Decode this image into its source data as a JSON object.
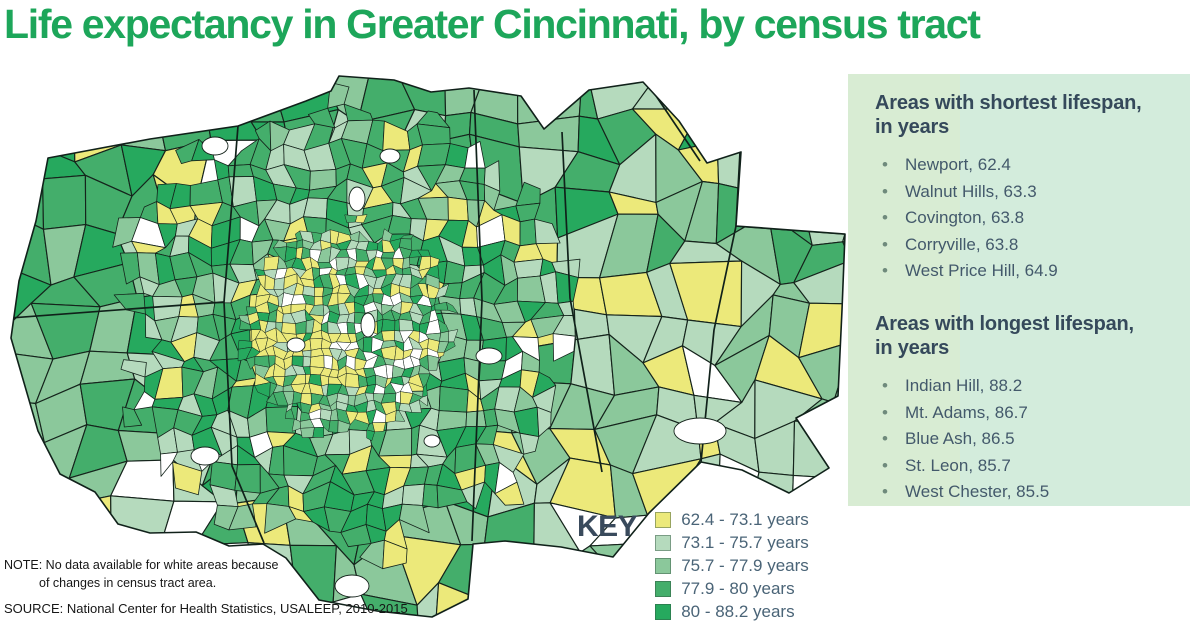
{
  "title": "Life expectancy in Greater Cincinnati, by census tract",
  "map": {
    "note_line1": "NOTE: No data available for white areas because",
    "note_line2": "of changes in census tract area.",
    "source": "SOURCE: National Center for Health Statistics, USALEEP, 2010-2015",
    "no_data_color": "#ffffff"
  },
  "key": {
    "label": "KEY",
    "items": [
      {
        "range": "62.4 - 73.1 years",
        "color": "#ece97a"
      },
      {
        "range": "73.1 - 75.7 years",
        "color": "#b5dabd"
      },
      {
        "range": "75.7 - 77.9 years",
        "color": "#8bc89b"
      },
      {
        "range": "77.9 - 80 years",
        "color": "#44ae6b"
      },
      {
        "range": "80 - 88.2 years",
        "color": "#26a95e"
      }
    ]
  },
  "panel": {
    "shortest": {
      "heading_line1": "Areas with shortest lifespan,",
      "heading_line2": "in years",
      "items": [
        "Newport, 62.4",
        "Walnut Hills, 63.3",
        "Covington, 63.8",
        "Corryville, 63.8",
        "West Price Hill, 64.9"
      ]
    },
    "longest": {
      "heading_line1": "Areas with longest lifespan,",
      "heading_line2": "in years",
      "items": [
        "Indian Hill, 88.2",
        "Mt. Adams, 86.7",
        "Blue Ash, 86.5",
        "St. Leon, 85.7",
        "West Chester, 85.5"
      ]
    }
  },
  "accent_colors": {
    "title_green": "#1da65a",
    "heading_slate": "#35495b",
    "panel_band_left": "#d8ecd3",
    "panel_band_right": "#d3ecdc"
  }
}
